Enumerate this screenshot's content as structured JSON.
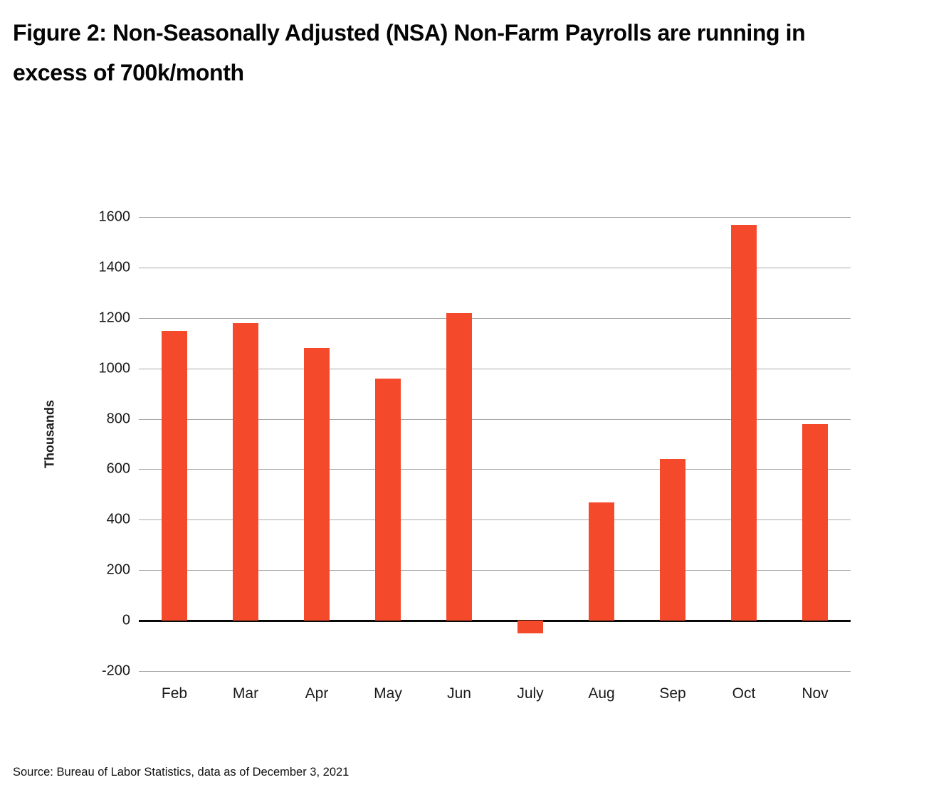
{
  "title": "Figure 2: Non-Seasonally Adjusted (NSA) Non-Farm Payrolls are running in excess of 700k/month",
  "source": "Source: Bureau of Labor Statistics, data as of December 3, 2021",
  "chart_data": {
    "type": "bar",
    "title": "Figure 2: Non-Seasonally Adjusted (NSA) Non-Farm Payrolls are running in excess of 700k/month",
    "categories": [
      "Feb",
      "Mar",
      "Apr",
      "May",
      "Jun",
      "July",
      "Aug",
      "Sep",
      "Oct",
      "Nov"
    ],
    "values": [
      1150,
      1180,
      1080,
      960,
      1220,
      -50,
      470,
      640,
      1570,
      780
    ],
    "xlabel": "",
    "ylabel": "Thousands",
    "ylim": [
      -200,
      1600
    ],
    "ytick_step": 200,
    "grid": true,
    "legend": "none",
    "bar_color": "#F5492B",
    "zero_line_color": "#0a0a0a",
    "gridline_color": "#a8a8a8"
  }
}
